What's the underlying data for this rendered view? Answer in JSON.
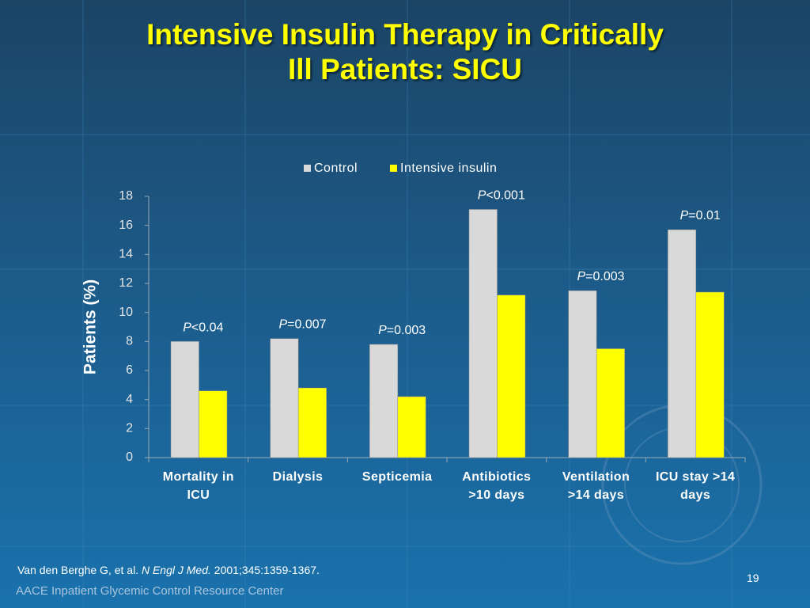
{
  "chart_data": {
    "type": "bar",
    "title": [
      "Intensive Insulin Therapy in Critically",
      "Ill Patients: SICU"
    ],
    "y_label": "Patients (%)",
    "categories": [
      "Mortality in ICU",
      "Dialysis",
      "Septicemia",
      "Antibiotics >10 days",
      "Ventilation >14 days",
      "ICU stay >14 days"
    ],
    "series": [
      {
        "name": "Control",
        "color": "#d9d9d9",
        "values": [
          8.0,
          8.2,
          7.8,
          17.1,
          11.5,
          15.7
        ]
      },
      {
        "name": "Intensive insulin",
        "color": "#ffff00",
        "values": [
          4.6,
          4.8,
          4.2,
          11.2,
          7.5,
          11.4
        ]
      }
    ],
    "annotations": [
      {
        "p": "P",
        "text": "<0.04"
      },
      {
        "p": "P",
        "text": "=0.007"
      },
      {
        "p": "P",
        "text": "=0.003"
      },
      {
        "p": "P",
        "text": "<0.001"
      },
      {
        "p": "P",
        "text": "=0.003"
      },
      {
        "p": "P",
        "text": "=0.01"
      }
    ],
    "ylim": [
      0,
      18
    ],
    "yticks": [
      0,
      2,
      4,
      6,
      8,
      10,
      12,
      14,
      16,
      18
    ],
    "legend": "top",
    "citation": {
      "authors": "Van den Berghe G, et al.",
      "journal": "N Engl J Med.",
      "details": "2001;345:1359-1367."
    },
    "page_number": "19",
    "footer": "AACE Inpatient Glycemic Control Resource Center"
  }
}
